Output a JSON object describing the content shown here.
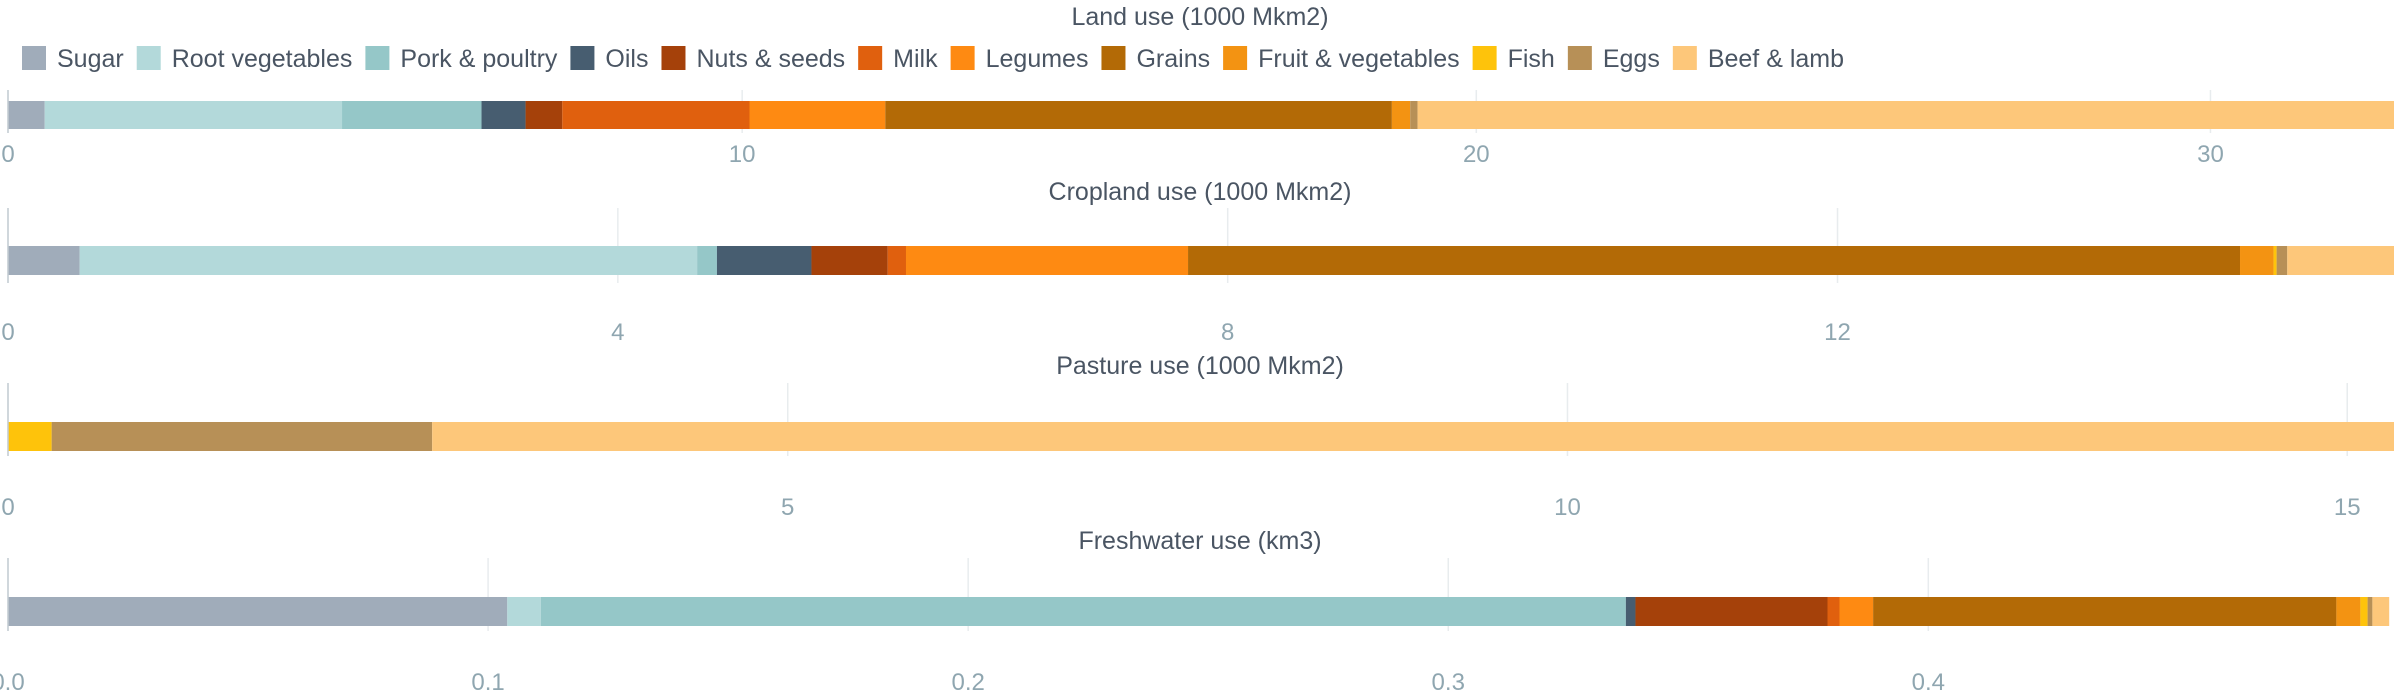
{
  "legend": [
    {
      "name": "Sugar",
      "color": "#a0acba"
    },
    {
      "name": "Root vegetables",
      "color": "#b3d9da"
    },
    {
      "name": "Pork & poultry",
      "color": "#95c7c8"
    },
    {
      "name": "Oils",
      "color": "#475d70"
    },
    {
      "name": "Nuts & seeds",
      "color": "#a5410a"
    },
    {
      "name": "Milk",
      "color": "#e0600e"
    },
    {
      "name": "Legumes",
      "color": "#fe8a12"
    },
    {
      "name": "Grains",
      "color": "#b36a06"
    },
    {
      "name": "Fruit & vegetables",
      "color": "#f39312"
    },
    {
      "name": "Fish",
      "color": "#fec30b"
    },
    {
      "name": "Eggs",
      "color": "#b79057"
    },
    {
      "name": "Beef & lamb",
      "color": "#fdc77a"
    }
  ],
  "chart_data": [
    {
      "type": "bar",
      "orientation": "horizontal-stacked",
      "title": "Land use (1000 Mkm2)",
      "xlim": [
        0,
        32.5
      ],
      "ticks": [
        0,
        10,
        20,
        30
      ],
      "tick_labels": [
        "0",
        "10",
        "20",
        "30"
      ],
      "grid": true,
      "series": [
        {
          "name": "Sugar",
          "value": 0.5
        },
        {
          "name": "Root vegetables",
          "value": 4.05
        },
        {
          "name": "Pork & poultry",
          "value": 1.9
        },
        {
          "name": "Oils",
          "value": 0.6
        },
        {
          "name": "Nuts & seeds",
          "value": 0.5
        },
        {
          "name": "Milk",
          "value": 2.55
        },
        {
          "name": "Legumes",
          "value": 1.85
        },
        {
          "name": "Grains",
          "value": 6.9
        },
        {
          "name": "Fruit & vegetables",
          "value": 0.25
        },
        {
          "name": "Fish",
          "value": 0.0
        },
        {
          "name": "Eggs",
          "value": 0.1
        },
        {
          "name": "Beef & lamb",
          "value": 13.3
        }
      ]
    },
    {
      "type": "bar",
      "orientation": "horizontal-stacked",
      "title": "Cropland use (1000 Mkm2)",
      "xlim": [
        0,
        15.65
      ],
      "ticks": [
        0,
        4,
        8,
        12
      ],
      "tick_labels": [
        "0",
        "4",
        "8",
        "12"
      ],
      "grid": true,
      "series": [
        {
          "name": "Sugar",
          "value": 0.47
        },
        {
          "name": "Root vegetables",
          "value": 4.05
        },
        {
          "name": "Pork & poultry",
          "value": 0.13
        },
        {
          "name": "Oils",
          "value": 0.62
        },
        {
          "name": "Nuts & seeds",
          "value": 0.5
        },
        {
          "name": "Milk",
          "value": 0.12
        },
        {
          "name": "Legumes",
          "value": 1.85
        },
        {
          "name": "Grains",
          "value": 6.9
        },
        {
          "name": "Fruit & vegetables",
          "value": 0.22
        },
        {
          "name": "Fish",
          "value": 0.02
        },
        {
          "name": "Eggs",
          "value": 0.07
        },
        {
          "name": "Beef & lamb",
          "value": 0.7
        }
      ]
    },
    {
      "type": "bar",
      "orientation": "horizontal-stacked",
      "title": "Pasture use (1000 Mkm2)",
      "xlim": [
        0,
        15.3
      ],
      "ticks": [
        0,
        5,
        10,
        15
      ],
      "tick_labels": [
        "0",
        "5",
        "10",
        "15"
      ],
      "grid": true,
      "series": [
        {
          "name": "Sugar",
          "value": 0
        },
        {
          "name": "Root vegetables",
          "value": 0
        },
        {
          "name": "Pork & poultry",
          "value": 0
        },
        {
          "name": "Oils",
          "value": 0
        },
        {
          "name": "Nuts & seeds",
          "value": 0
        },
        {
          "name": "Milk",
          "value": 0
        },
        {
          "name": "Legumes",
          "value": 0
        },
        {
          "name": "Grains",
          "value": 0
        },
        {
          "name": "Fruit & vegetables",
          "value": 0
        },
        {
          "name": "Fish",
          "value": 0.28
        },
        {
          "name": "Eggs",
          "value": 2.44
        },
        {
          "name": "Beef & lamb",
          "value": 12.58
        }
      ]
    },
    {
      "type": "bar",
      "orientation": "horizontal-stacked",
      "title": "Freshwater use (km3)",
      "xlim": [
        0,
        0.497
      ],
      "ticks": [
        0,
        0.1,
        0.2,
        0.3,
        0.4
      ],
      "tick_labels": [
        "0.0",
        "0.1",
        "0.2",
        "0.3",
        "0.4"
      ],
      "grid": true,
      "series": [
        {
          "name": "Sugar",
          "value": 0.104
        },
        {
          "name": "Root vegetables",
          "value": 0.007
        },
        {
          "name": "Pork & poultry",
          "value": 0.226
        },
        {
          "name": "Oils",
          "value": 0.002
        },
        {
          "name": "Nuts & seeds",
          "value": 0.04
        },
        {
          "name": "Milk",
          "value": 0.0025
        },
        {
          "name": "Legumes",
          "value": 0.007
        },
        {
          "name": "Grains",
          "value": 0.0965
        },
        {
          "name": "Fruit & vegetables",
          "value": 0.005
        },
        {
          "name": "Fish",
          "value": 0.0015
        },
        {
          "name": "Eggs",
          "value": 0.001
        },
        {
          "name": "Beef & lamb",
          "value": 0.0035
        }
      ]
    }
  ]
}
